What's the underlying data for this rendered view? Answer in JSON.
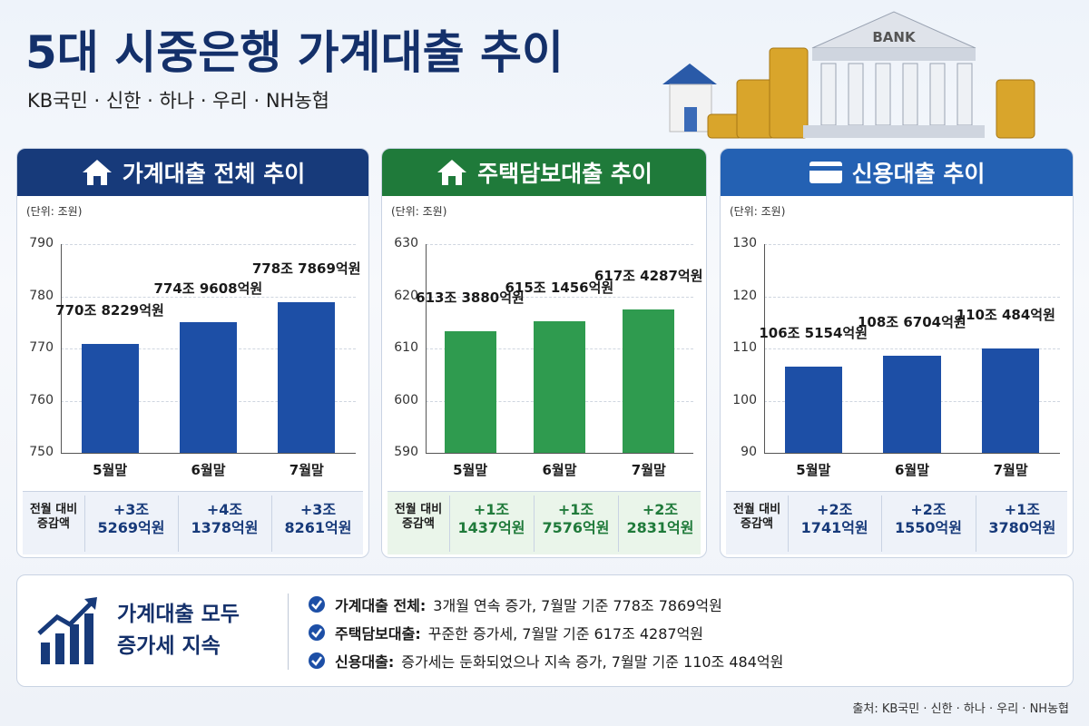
{
  "header": {
    "title": "5대 시중은행 가계대출 추이",
    "subtitle": "KB국민 · 신한 · 하나 · 우리 · NH농협",
    "illustration_label": "BANK"
  },
  "chart_data": [
    {
      "type": "bar",
      "title": "가계대출 전체 추이",
      "unit": "(단위: 조원)",
      "header_color": "#173a7a",
      "color": "#1d4fa6",
      "categories": [
        "5월말",
        "6월말",
        "7월말"
      ],
      "values": [
        770.8229,
        774.9608,
        778.7869
      ],
      "value_labels": [
        "770조\n8229억원",
        "774조\n9608억원",
        "778조\n7869억원"
      ],
      "ylim": [
        750,
        790
      ],
      "yticks": [
        750,
        760,
        770,
        780,
        790
      ],
      "grid": true,
      "change_row": {
        "header": "전월 대비\n증감액",
        "cells": [
          "+3조\n5269억원",
          "+4조\n1378억원",
          "+3조\n8261억원"
        ]
      }
    },
    {
      "type": "bar",
      "title": "주택담보대출 추이",
      "unit": "(단위: 조원)",
      "header_color": "#1f7a3a",
      "color": "#2f9b4f",
      "categories": [
        "5월말",
        "6월말",
        "7월말"
      ],
      "values": [
        613.388,
        615.1456,
        617.4287
      ],
      "value_labels": [
        "613조\n3880억원",
        "615조\n1456억원",
        "617조\n4287억원"
      ],
      "ylim": [
        590,
        630
      ],
      "yticks": [
        590,
        600,
        610,
        620,
        630
      ],
      "grid": true,
      "change_row": {
        "header": "전월 대비\n증감액",
        "cells": [
          "+1조\n1437억원",
          "+1조\n7576억원",
          "+2조\n2831억원"
        ]
      }
    },
    {
      "type": "bar",
      "title": "신용대출 추이",
      "unit": "(단위: 조원)",
      "header_color": "#2461b3",
      "color": "#1d4fa6",
      "categories": [
        "5월말",
        "6월말",
        "7월말"
      ],
      "values": [
        106.5154,
        108.6704,
        110.0484
      ],
      "value_labels": [
        "106조\n5154억원",
        "108조\n6704억원",
        "110조\n484억원"
      ],
      "ylim": [
        90,
        130
      ],
      "yticks": [
        90,
        100,
        110,
        120,
        130
      ],
      "grid": true,
      "change_row": {
        "header": "전월 대비\n증감액",
        "cells": [
          "+2조\n1741억원",
          "+2조\n1550억원",
          "+1조\n3780억원"
        ]
      }
    }
  ],
  "summary": {
    "heading": "가계대출 모두\n증가세 지속",
    "items": [
      {
        "label": "가계대출 전체:",
        "text": "3개월 연속 증가, 7월말 기준 778조 7869억원"
      },
      {
        "label": "주택담보대출:",
        "text": "꾸준한 증가세, 7월말 기준 617조 4287억원"
      },
      {
        "label": "신용대출:",
        "text": "증가세는 둔화되었으나 지속 증가, 7월말 기준 110조 484억원"
      }
    ]
  },
  "source": "출처: KB국민 · 신한 · 하나 · 우리 · NH농협"
}
